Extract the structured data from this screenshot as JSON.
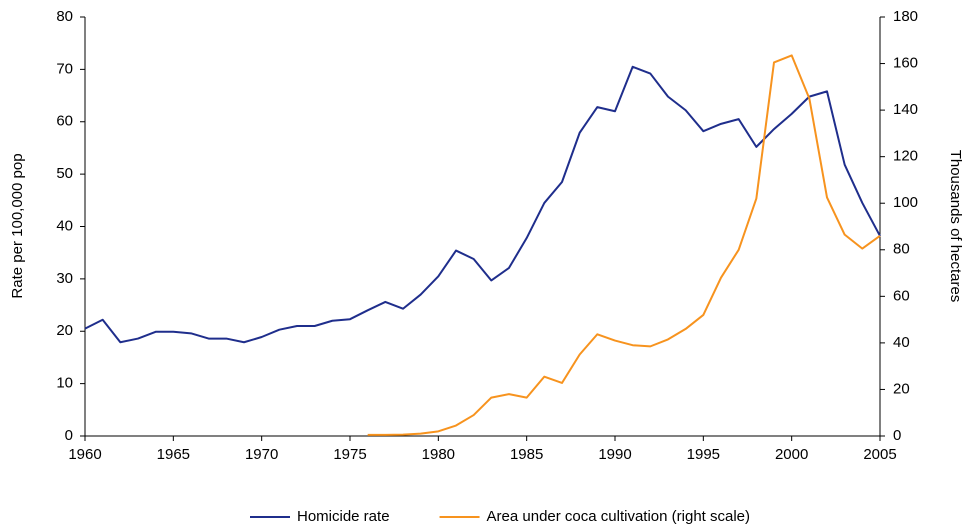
{
  "chart_data": {
    "type": "line",
    "x": [
      1960,
      1961,
      1962,
      1963,
      1964,
      1965,
      1966,
      1967,
      1968,
      1969,
      1970,
      1971,
      1972,
      1973,
      1974,
      1975,
      1976,
      1977,
      1978,
      1979,
      1980,
      1981,
      1982,
      1983,
      1984,
      1985,
      1986,
      1987,
      1988,
      1989,
      1990,
      1991,
      1992,
      1993,
      1994,
      1995,
      1996,
      1997,
      1998,
      1999,
      2000,
      2001,
      2002,
      2003,
      2004,
      2005
    ],
    "series": [
      {
        "name": "Homicide rate",
        "color": "#1f2e8c",
        "axis": "y",
        "values": [
          20.5,
          22.2,
          17.9,
          18.6,
          19.9,
          19.9,
          19.6,
          18.6,
          18.6,
          17.9,
          18.9,
          20.3,
          21,
          21,
          22,
          22.3,
          24,
          25.6,
          24.3,
          27,
          30.5,
          35.4,
          33.8,
          29.7,
          32.1,
          37.8,
          44.5,
          48.5,
          57.9,
          62.8,
          62,
          70.5,
          69.2,
          64.8,
          62.2,
          58.2,
          59.6,
          60.5,
          55.2,
          58.6,
          61.5,
          64.8,
          65.8,
          51.8,
          44.5,
          38.2
        ]
      },
      {
        "name": "Area under coca cultivation (right scale)",
        "color": "#f7931e",
        "axis": "y2",
        "values": [
          null,
          null,
          null,
          null,
          null,
          null,
          null,
          null,
          null,
          null,
          null,
          null,
          null,
          null,
          null,
          null,
          0.5,
          0.5,
          0.6,
          1,
          2,
          4.5,
          9,
          16.5,
          18,
          16.5,
          25.5,
          22.8,
          35,
          43.7,
          41,
          39,
          38.5,
          41.5,
          46,
          52,
          68,
          80,
          102,
          160.5,
          163.5,
          145,
          102.5,
          86.5,
          80.5,
          86
        ]
      }
    ],
    "y_label": "Rate per 100,000 pop",
    "y2_label": "Thousands of hectares",
    "xlim": [
      1960,
      2005
    ],
    "xticks": [
      1960,
      1965,
      1970,
      1975,
      1980,
      1985,
      1990,
      1995,
      2000,
      2005
    ],
    "ylim": [
      0,
      80
    ],
    "yticks": [
      0,
      10,
      20,
      30,
      40,
      50,
      60,
      70,
      80
    ],
    "y2lim": [
      0,
      180
    ],
    "y2ticks": [
      0,
      20,
      40,
      60,
      80,
      100,
      120,
      140,
      160,
      180
    ],
    "grid": false,
    "legend": "bottom"
  }
}
